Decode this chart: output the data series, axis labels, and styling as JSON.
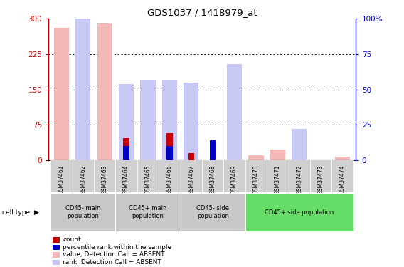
{
  "title": "GDS1037 / 1418979_at",
  "samples": [
    "GSM37461",
    "GSM37462",
    "GSM37463",
    "GSM37464",
    "GSM37465",
    "GSM37466",
    "GSM37467",
    "GSM37468",
    "GSM37469",
    "GSM37470",
    "GSM37471",
    "GSM37472",
    "GSM37473",
    "GSM37474"
  ],
  "value_absent": [
    280,
    225,
    290,
    0,
    52,
    0,
    50,
    0,
    68,
    10,
    22,
    0,
    0,
    8
  ],
  "rank_absent": [
    0,
    143,
    0,
    54,
    57,
    57,
    55,
    0,
    68,
    0,
    0,
    22,
    0,
    0
  ],
  "count_val": [
    0,
    0,
    0,
    47,
    0,
    57,
    15,
    15,
    0,
    0,
    0,
    0,
    0,
    0
  ],
  "percentile_rank": [
    0,
    0,
    0,
    10,
    0,
    10,
    0,
    14,
    0,
    0,
    0,
    0,
    0,
    0
  ],
  "groups": [
    {
      "label": "CD45- main\npopulation",
      "start": 0,
      "end": 3,
      "color": "#d0d0d0"
    },
    {
      "label": "CD45+ main\npopulation",
      "start": 3,
      "end": 6,
      "color": "#d0d0d0"
    },
    {
      "label": "CD45- side\npopulation",
      "start": 6,
      "end": 9,
      "color": "#d0d0d0"
    },
    {
      "label": "CD45+ side population",
      "start": 9,
      "end": 14,
      "color": "#66cc66"
    }
  ],
  "ylim_left": [
    0,
    300
  ],
  "ylim_right": [
    0,
    100
  ],
  "yticks_left": [
    0,
    75,
    150,
    225,
    300
  ],
  "ytick_labels_left": [
    "0",
    "75",
    "150",
    "225",
    "300"
  ],
  "yticks_right": [
    0,
    25,
    50,
    75,
    100
  ],
  "ytick_labels_right": [
    "0",
    "25",
    "50",
    "75",
    "100%"
  ],
  "color_value_absent": "#f4b8b8",
  "color_rank_absent": "#c8c8f4",
  "color_count": "#cc0000",
  "color_percentile": "#0000cc",
  "bar_width": 0.35,
  "background_color": "#ffffff",
  "legend_items": [
    {
      "color": "#cc0000",
      "label": "count"
    },
    {
      "color": "#0000cc",
      "label": "percentile rank within the sample"
    },
    {
      "color": "#f4b8b8",
      "label": "value, Detection Call = ABSENT"
    },
    {
      "color": "#c8c8f4",
      "label": "rank, Detection Call = ABSENT"
    }
  ]
}
